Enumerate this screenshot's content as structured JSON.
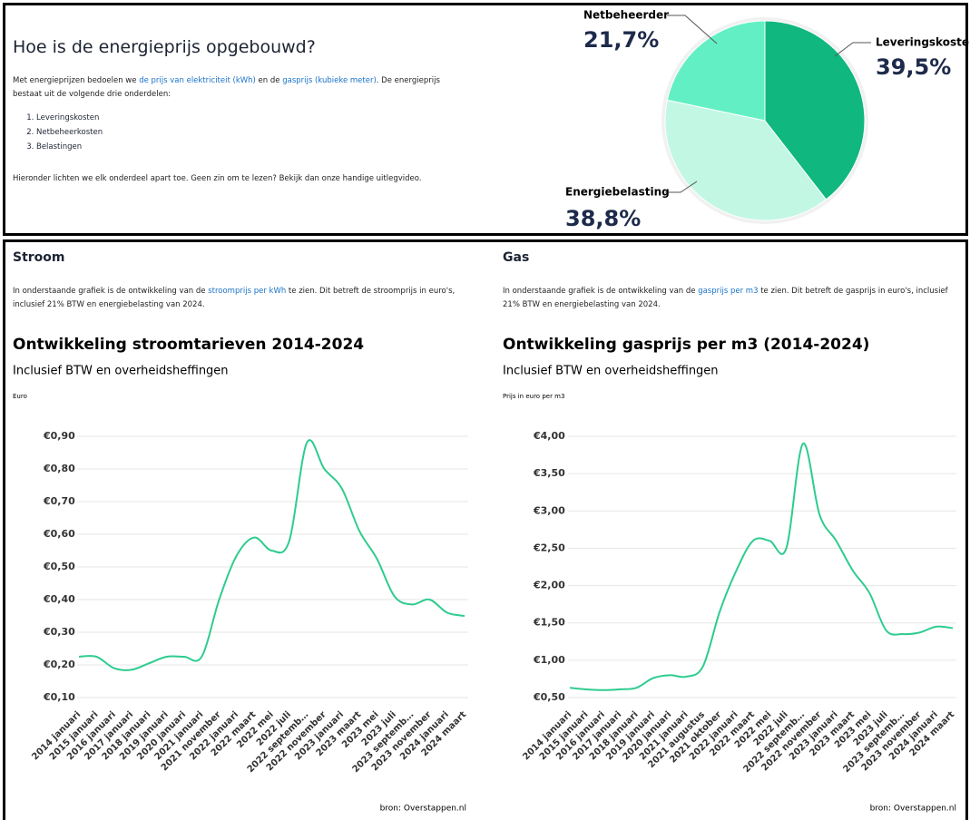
{
  "intro": {
    "title": "Hoe is de energieprijs opgebouwd?",
    "paragraph": [
      "Met energieprijzen bedoelen we ",
      "de prijs van elektriciteit (kWh)",
      " en de ",
      "gasprijs (kubieke meter)",
      ". De energieprijs bestaat uit de volgende drie onderdelen:"
    ],
    "list": [
      "Leveringskosten",
      "Netbeheerkosten",
      "Belastingen"
    ],
    "footer": "Hieronder lichten we elk onderdeel apart toe. Geen zin om te lezen? Bekijk dan onze handige uitlegvideo."
  },
  "stroom": {
    "heading": "Stroom",
    "paragraph": [
      "In onderstaande grafiek is de ontwikkeling van de ",
      "stroomprijs per kWh",
      " te zien. Dit betreft de stroomprijs in euro's, inclusief 21% BTW en energiebelasting van 2024."
    ]
  },
  "gas": {
    "heading": "Gas",
    "paragraph": [
      "In onderstaande grafiek is de ontwikkeling van de ",
      "gasprijs per m3",
      " te zien. Dit betreft de gasprijs in euro's, inclusief 21% BTW en energiebelasting van 2024."
    ]
  },
  "chart_data": [
    {
      "type": "pie",
      "categories": [
        "Leveringskosten",
        "Energiebelasting",
        "Netbeheerder"
      ],
      "values": [
        39.5,
        38.8,
        21.7
      ],
      "value_labels": [
        "39,5%",
        "38,8%",
        "21,7%"
      ],
      "colors": [
        "#10b77f",
        "#c2f7e4",
        "#63efc4"
      ]
    },
    {
      "type": "line",
      "title": "Ontwikkeling stroomtarieven 2014-2024",
      "subtitle": "Inclusief BTW en overheidsheffingen",
      "y_label": "Euro",
      "source": "bron: Overstappen.nl",
      "color": "#2ecc8f",
      "grid": true,
      "categories": [
        "2014 januari",
        "2015 januari",
        "2016 januari",
        "2017 januari",
        "2018 januari",
        "2019 januari",
        "2020 januari",
        "2021 januari",
        "2021 november",
        "2022 januari",
        "2022 maart",
        "2022 mei",
        "2022 juli",
        "2022 septemb…",
        "2022 november",
        "2023 januari",
        "2023 maart",
        "2023 mei",
        "2023 juli",
        "2023 septemb…",
        "2023 november",
        "2024 januari",
        "2024 maart"
      ],
      "values": [
        0.225,
        0.225,
        0.19,
        0.185,
        0.205,
        0.225,
        0.225,
        0.225,
        0.4,
        0.535,
        0.59,
        0.55,
        0.58,
        0.88,
        0.8,
        0.74,
        0.61,
        0.525,
        0.41,
        0.385,
        0.4,
        0.36,
        0.35
      ],
      "ylim": [
        0.1,
        0.9
      ],
      "yticks": [
        {
          "value": 0.1,
          "label": "€0,10"
        },
        {
          "value": 0.2,
          "label": "€0,20"
        },
        {
          "value": 0.3,
          "label": "€0,30"
        },
        {
          "value": 0.4,
          "label": "€0,40"
        },
        {
          "value": 0.5,
          "label": "€0,50"
        },
        {
          "value": 0.6,
          "label": "€0,60"
        },
        {
          "value": 0.7,
          "label": "€0,70"
        },
        {
          "value": 0.8,
          "label": "€0,80"
        },
        {
          "value": 0.9,
          "label": "€0,90"
        }
      ]
    },
    {
      "type": "line",
      "title": "Ontwikkeling gasprijs per m3 (2014-2024)",
      "subtitle": "Inclusief BTW en overheidsheffingen",
      "y_label": "Prijs in euro per m3",
      "source": "bron: Overstappen.nl",
      "color": "#2ecc8f",
      "grid": true,
      "categories": [
        "2014 januari",
        "2015 januari",
        "2016 januari",
        "2017 januari",
        "2018 januari",
        "2019 januari",
        "2020 januari",
        "2021 januari",
        "2021 augustus",
        "2021 oktober",
        "2022 januari",
        "2022 maart",
        "2022 mei",
        "2022 juli",
        "2022 septemb…",
        "2022 november",
        "2023 januari",
        "2023 maart",
        "2023 mei",
        "2023 juli",
        "2023 septemb…",
        "2023 november",
        "2024 januari",
        "2024 maart"
      ],
      "values": [
        0.63,
        0.61,
        0.6,
        0.61,
        0.63,
        0.76,
        0.8,
        0.78,
        0.92,
        1.65,
        2.2,
        2.6,
        2.6,
        2.5,
        3.9,
        2.95,
        2.6,
        2.2,
        1.9,
        1.4,
        1.35,
        1.37,
        1.45,
        1.43
      ],
      "ylim": [
        0.5,
        4.0
      ],
      "yticks": [
        {
          "value": 0.5,
          "label": "€0,50"
        },
        {
          "value": 1.0,
          "label": "€1,00"
        },
        {
          "value": 1.5,
          "label": "€1,50"
        },
        {
          "value": 2.0,
          "label": "€2,00"
        },
        {
          "value": 2.5,
          "label": "€2,50"
        },
        {
          "value": 3.0,
          "label": "€3,00"
        },
        {
          "value": 3.5,
          "label": "€3,50"
        },
        {
          "value": 4.0,
          "label": "€4,00"
        }
      ]
    }
  ]
}
